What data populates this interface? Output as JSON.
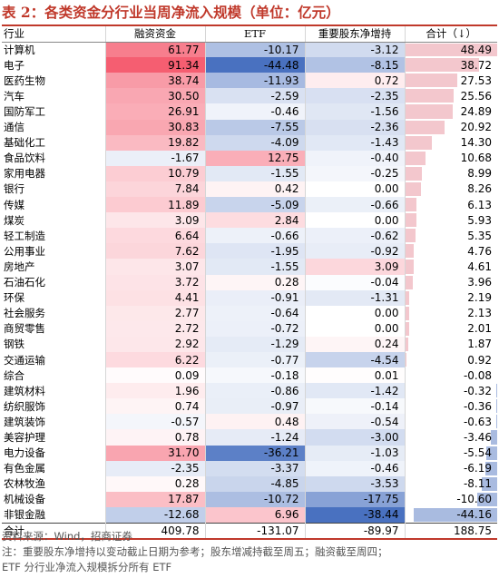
{
  "title": "表 2：各类资金分行业当周净流入规模（单位：亿元）",
  "headers": [
    "行业",
    "融资资金",
    "ETF",
    "重要股东净增持",
    "合计（↓）"
  ],
  "colors": {
    "pos": "#f4566a",
    "neg": "#3f69bd",
    "total_bar_pos": "#f3c7cd",
    "total_bar_neg": "#a9bbe0"
  },
  "rows": [
    {
      "name": "计算机",
      "v": [
        "61.77",
        "-10.17",
        "-3.12",
        "48.49"
      ]
    },
    {
      "name": "电子",
      "v": [
        "91.34",
        "-44.48",
        "-8.15",
        "38.72"
      ]
    },
    {
      "name": "医药生物",
      "v": [
        "38.74",
        "-11.93",
        "0.72",
        "27.53"
      ]
    },
    {
      "name": "汽车",
      "v": [
        "30.50",
        "-2.59",
        "-2.35",
        "25.56"
      ]
    },
    {
      "name": "国防军工",
      "v": [
        "26.91",
        "-0.46",
        "-1.56",
        "24.89"
      ]
    },
    {
      "name": "通信",
      "v": [
        "30.83",
        "-7.55",
        "-2.36",
        "20.92"
      ]
    },
    {
      "name": "基础化工",
      "v": [
        "19.82",
        "-4.09",
        "-1.43",
        "14.30"
      ]
    },
    {
      "name": "食品饮料",
      "v": [
        "-1.67",
        "12.75",
        "-0.40",
        "10.68"
      ]
    },
    {
      "name": "家用电器",
      "v": [
        "10.79",
        "-1.55",
        "-0.25",
        "8.99"
      ]
    },
    {
      "name": "银行",
      "v": [
        "7.84",
        "0.42",
        "0.00",
        "8.26"
      ]
    },
    {
      "name": "传媒",
      "v": [
        "11.89",
        "-5.09",
        "-0.66",
        "6.13"
      ]
    },
    {
      "name": "煤炭",
      "v": [
        "3.09",
        "2.84",
        "0.00",
        "5.93"
      ]
    },
    {
      "name": "轻工制造",
      "v": [
        "6.64",
        "-0.66",
        "-0.62",
        "5.35"
      ]
    },
    {
      "name": "公用事业",
      "v": [
        "7.62",
        "-1.95",
        "-0.92",
        "4.76"
      ]
    },
    {
      "name": "房地产",
      "v": [
        "3.07",
        "-1.55",
        "3.09",
        "4.61"
      ]
    },
    {
      "name": "石油石化",
      "v": [
        "3.72",
        "0.28",
        "-0.04",
        "3.96"
      ]
    },
    {
      "name": "环保",
      "v": [
        "4.41",
        "-0.91",
        "-1.31",
        "2.19"
      ]
    },
    {
      "name": "社会服务",
      "v": [
        "2.77",
        "-0.64",
        "0.00",
        "2.13"
      ]
    },
    {
      "name": "商贸零售",
      "v": [
        "2.72",
        "-0.72",
        "0.00",
        "2.01"
      ]
    },
    {
      "name": "钢铁",
      "v": [
        "2.92",
        "-1.29",
        "0.24",
        "1.87"
      ]
    },
    {
      "name": "交通运输",
      "v": [
        "6.22",
        "-0.77",
        "-4.54",
        "0.92"
      ]
    },
    {
      "name": "综合",
      "v": [
        "0.09",
        "-0.18",
        "0.01",
        "-0.08"
      ]
    },
    {
      "name": "建筑材料",
      "v": [
        "1.96",
        "-0.86",
        "-1.42",
        "-0.32"
      ]
    },
    {
      "name": "纺织服饰",
      "v": [
        "0.74",
        "-0.97",
        "-0.14",
        "-0.36"
      ]
    },
    {
      "name": "建筑装饰",
      "v": [
        "-0.57",
        "0.48",
        "-0.54",
        "-0.63"
      ]
    },
    {
      "name": "美容护理",
      "v": [
        "0.78",
        "-1.24",
        "-3.00",
        "-3.46"
      ]
    },
    {
      "name": "电力设备",
      "v": [
        "31.70",
        "-36.21",
        "-1.03",
        "-5.54"
      ]
    },
    {
      "name": "有色金属",
      "v": [
        "-2.35",
        "-3.37",
        "-0.46",
        "-6.19"
      ]
    },
    {
      "name": "农林牧渔",
      "v": [
        "0.28",
        "-4.85",
        "-3.53",
        "-8.11"
      ]
    },
    {
      "name": "机械设备",
      "v": [
        "17.87",
        "-10.72",
        "-17.75",
        "-10.60"
      ]
    },
    {
      "name": "非银金融",
      "v": [
        "-12.68",
        "6.96",
        "-38.44",
        "-44.16"
      ]
    }
  ],
  "total": {
    "name": "合计",
    "v": [
      "409.78",
      "-131.07",
      "-89.97",
      "188.75"
    ]
  },
  "footnotes": [
    "资料来源：Wind，招商证券",
    "注：重要股东净增持以变动截止日期为参考；股东增减持截至周五；融资截至周四；",
    "ETF 分行业净流入规模拆分所有 ETF"
  ]
}
